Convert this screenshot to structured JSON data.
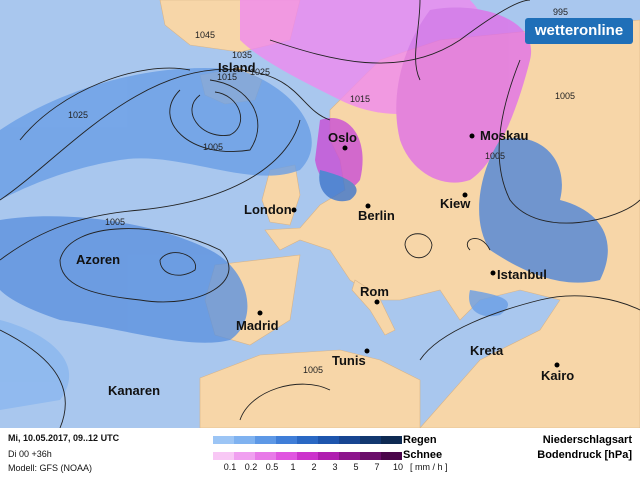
{
  "logo": "wetteronline",
  "cities": [
    "Island",
    "Oslo",
    "Moskau",
    "London",
    "Berlin",
    "Kiew",
    "Azoren",
    "Istanbul",
    "Rom",
    "Madrid",
    "Tunis",
    "Kreta",
    "Kairo",
    "Kanaren"
  ],
  "isobar_labels": [
    1045,
    1035,
    1025,
    1015,
    1025,
    1005,
    1015,
    1005,
    1005,
    995,
    1005,
    1005
  ],
  "footer": {
    "date": "Mi, 10.05.2017, 09..12 UTC",
    "run": "Di 00 +36h",
    "model": "Modell: GFS (NOAA)"
  },
  "legend": {
    "rain": "Regen",
    "snow": "Schnee",
    "steps": [
      "0.1",
      "0.2",
      "0.5",
      "1",
      "2",
      "3",
      "5",
      "7",
      "10"
    ],
    "unit": "[ mm / h ]",
    "title1": "Niederschlagsart",
    "title2": "Bodendruck [hPa]"
  }
}
